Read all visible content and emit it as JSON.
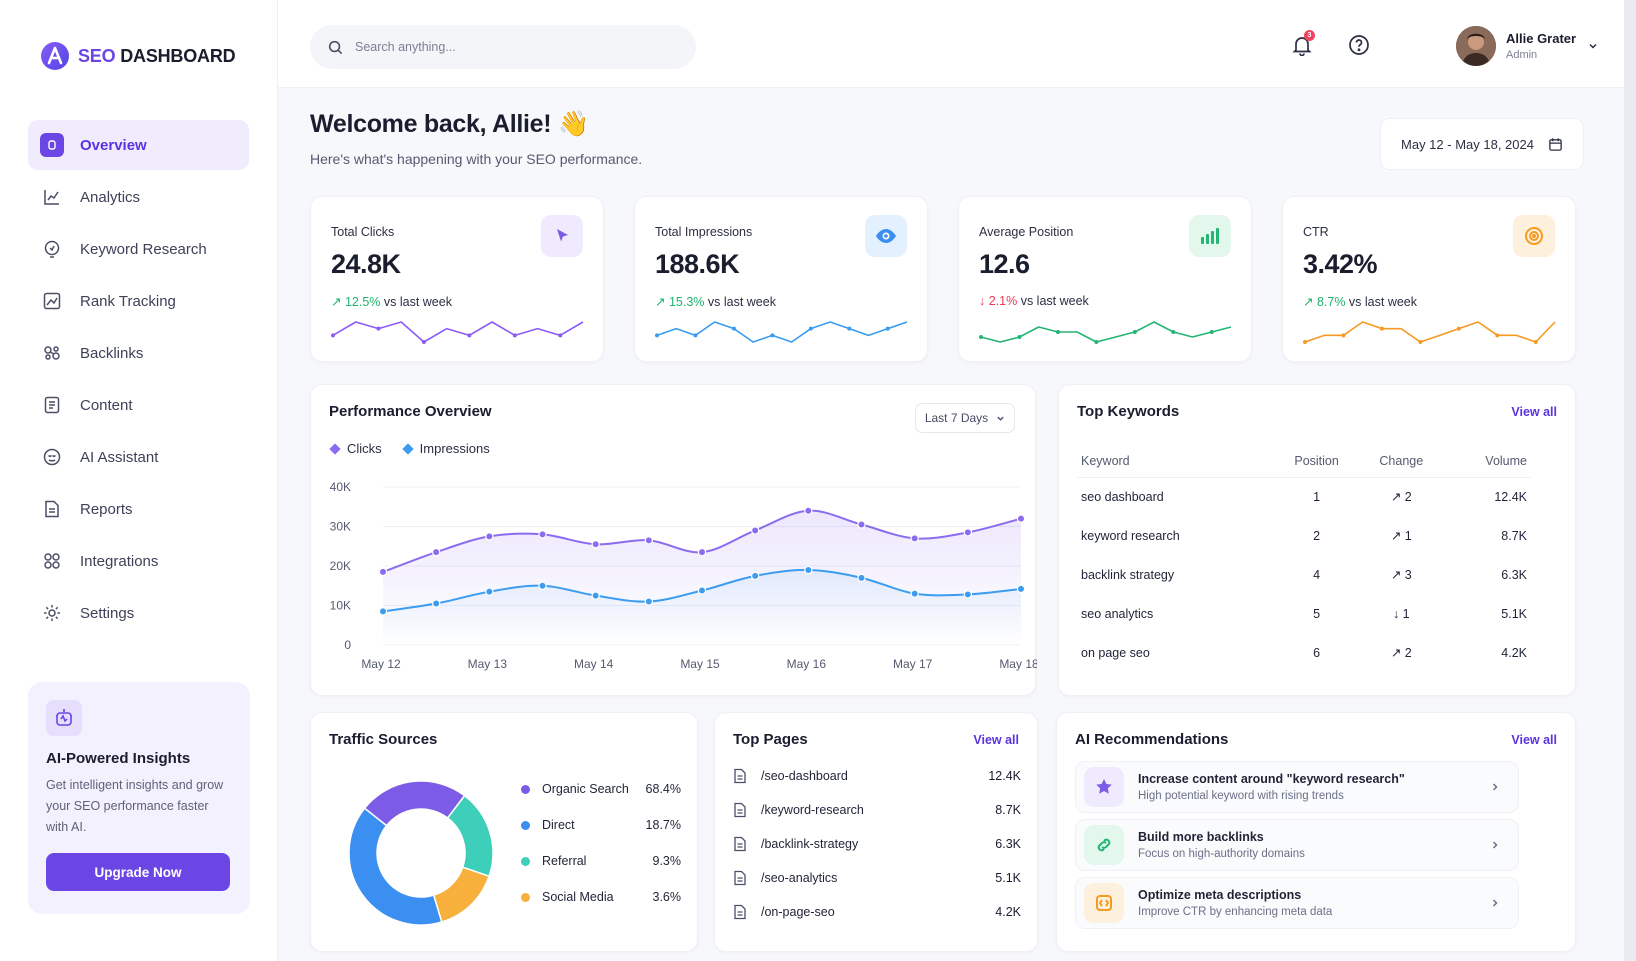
{
  "brand": {
    "prefix": "SEO",
    "suffix": " DASHBOARD"
  },
  "sidebar": {
    "items": [
      {
        "label": "Overview",
        "icon": "overview-icon",
        "active": true
      },
      {
        "label": "Analytics",
        "icon": "analytics-icon"
      },
      {
        "label": "Keyword Research",
        "icon": "keyword-icon"
      },
      {
        "label": "Rank Tracking",
        "icon": "rank-icon"
      },
      {
        "label": "Backlinks",
        "icon": "link-icon"
      },
      {
        "label": "Content",
        "icon": "document-icon"
      },
      {
        "label": "AI Assistant",
        "icon": "ai-bot-icon"
      },
      {
        "label": "Reports",
        "icon": "report-icon"
      },
      {
        "label": "Integrations",
        "icon": "integrations-icon"
      },
      {
        "label": "Settings",
        "icon": "gear-icon"
      }
    ],
    "insight": {
      "title": "AI-Powered Insights",
      "text": "Get intelligent insights and grow your SEO performance faster with AI.",
      "button": "Upgrade Now"
    }
  },
  "header": {
    "search_placeholder": "Search anything...",
    "notifications": "3",
    "user": {
      "name": "Allie Grater",
      "role": "Admin"
    }
  },
  "welcome": {
    "title": "Welcome back, Allie! 👋",
    "subtitle": "Here's what's happening with your SEO performance."
  },
  "date_range": "May 12 - May 18, 2024",
  "stats": [
    {
      "label": "Total Clicks",
      "value": "24.8K",
      "change": "12.5%",
      "direction": "up",
      "suffix": " vs last week",
      "color": "#8b5cf6",
      "icon": "cursor-icon",
      "spark": [
        3,
        5,
        4,
        5,
        2,
        4,
        3,
        5,
        3,
        4,
        3,
        5
      ]
    },
    {
      "label": "Total Impressions",
      "value": "188.6K",
      "change": "15.3%",
      "direction": "up",
      "suffix": " vs last week",
      "color": "#3b9cf0",
      "icon": "eye-icon",
      "spark": [
        3,
        4,
        3,
        5,
        4,
        2,
        3,
        2,
        4,
        5,
        4,
        3,
        4,
        5
      ]
    },
    {
      "label": "Average Position",
      "value": "12.6",
      "change": "2.1%",
      "direction": "down",
      "suffix": " vs last week",
      "color": "#22b573",
      "icon": "bar-chart-icon",
      "spark": [
        3,
        2,
        3,
        5,
        4,
        4,
        2,
        3,
        4,
        6,
        4,
        3,
        4,
        5
      ]
    },
    {
      "label": "CTR",
      "value": "3.42%",
      "change": "8.7%",
      "direction": "up",
      "suffix": " vs last week",
      "color": "#f59a23",
      "icon": "target-icon",
      "spark": [
        2,
        3,
        3,
        5,
        4,
        4,
        2,
        3,
        4,
        5,
        3,
        3,
        2,
        5
      ]
    }
  ],
  "performance": {
    "title": "Performance Overview",
    "range": "Last 7 Days",
    "chart_data": {
      "type": "line",
      "x": [
        "May 12",
        "May 12.5",
        "May 13",
        "May 13.5",
        "May 14",
        "May 14.5",
        "May 15",
        "May 15.5",
        "May 16",
        "May 16.5",
        "May 17",
        "May 17.5",
        "May 18"
      ],
      "categories": [
        "May 12",
        "May 13",
        "May 14",
        "May 15",
        "May 16",
        "May 17",
        "May 18"
      ],
      "series": [
        {
          "name": "Clicks",
          "color": "#8b6cf0",
          "values": [
            18500,
            23500,
            27500,
            28000,
            25500,
            26500,
            23500,
            29000,
            34000,
            30500,
            27000,
            28500,
            32000
          ]
        },
        {
          "name": "Impressions",
          "color": "#3b9cf0",
          "values": [
            8500,
            10500,
            13500,
            15000,
            12500,
            11000,
            13800,
            17500,
            19000,
            17000,
            13000,
            12800,
            14200
          ]
        }
      ],
      "y_ticks": [
        "40K",
        "30K",
        "20K",
        "10K",
        "0"
      ],
      "ylim": [
        0,
        40000
      ],
      "grid": true
    }
  },
  "keywords": {
    "title": "Top Keywords",
    "view_all": "View all",
    "columns": [
      "Keyword",
      "Position",
      "Change",
      "Volume"
    ],
    "rows": [
      {
        "keyword": "seo dashboard",
        "position": "1",
        "change": "2",
        "dir": "up",
        "volume": "12.4K"
      },
      {
        "keyword": "keyword research",
        "position": "2",
        "change": "1",
        "dir": "up",
        "volume": "8.7K"
      },
      {
        "keyword": "backlink strategy",
        "position": "4",
        "change": "3",
        "dir": "up",
        "volume": "6.3K"
      },
      {
        "keyword": "seo analytics",
        "position": "5",
        "change": "1",
        "dir": "down",
        "volume": "5.1K"
      },
      {
        "keyword": "on page seo",
        "position": "6",
        "change": "2",
        "dir": "up",
        "volume": "4.2K"
      }
    ]
  },
  "traffic": {
    "title": "Traffic Sources",
    "chart_data": {
      "type": "pie",
      "slices": [
        {
          "name": "Organic Search",
          "label": "68.4%",
          "value": 68.4,
          "color": "#7c5ce6"
        },
        {
          "name": "Direct",
          "label": "18.7%",
          "value": 18.7,
          "color": "#3b8ff0"
        },
        {
          "name": "Referral",
          "label": "9.3%",
          "value": 9.3,
          "color": "#3ecfbb"
        },
        {
          "name": "Social Media",
          "label": "3.6%",
          "value": 3.6,
          "color": "#f7b03c"
        }
      ]
    }
  },
  "pages": {
    "title": "Top Pages",
    "view_all": "View all",
    "rows": [
      {
        "path": "/seo-dashboard",
        "value": "12.4K"
      },
      {
        "path": "/keyword-research",
        "value": "8.7K"
      },
      {
        "path": "/backlink-strategy",
        "value": "6.3K"
      },
      {
        "path": "/seo-analytics",
        "value": "5.1K"
      },
      {
        "path": "/on-page-seo",
        "value": "4.2K"
      }
    ]
  },
  "recommendations": {
    "title": "AI Recommendations",
    "view_all": "View all",
    "items": [
      {
        "title": "Increase content around \"keyword research\"",
        "subtitle": "High potential keyword with rising trends",
        "icon": "star-icon",
        "color": "#7c5ce6",
        "bg": "#efeafd"
      },
      {
        "title": "Build more backlinks",
        "subtitle": "Focus on high-authority domains",
        "icon": "chain-link-icon",
        "color": "#22b573",
        "bg": "#e3f7ec"
      },
      {
        "title": "Optimize meta descriptions",
        "subtitle": "Improve CTR by enhancing meta data",
        "icon": "code-icon",
        "color": "#f59a23",
        "bg": "#fdf0dc"
      }
    ]
  }
}
